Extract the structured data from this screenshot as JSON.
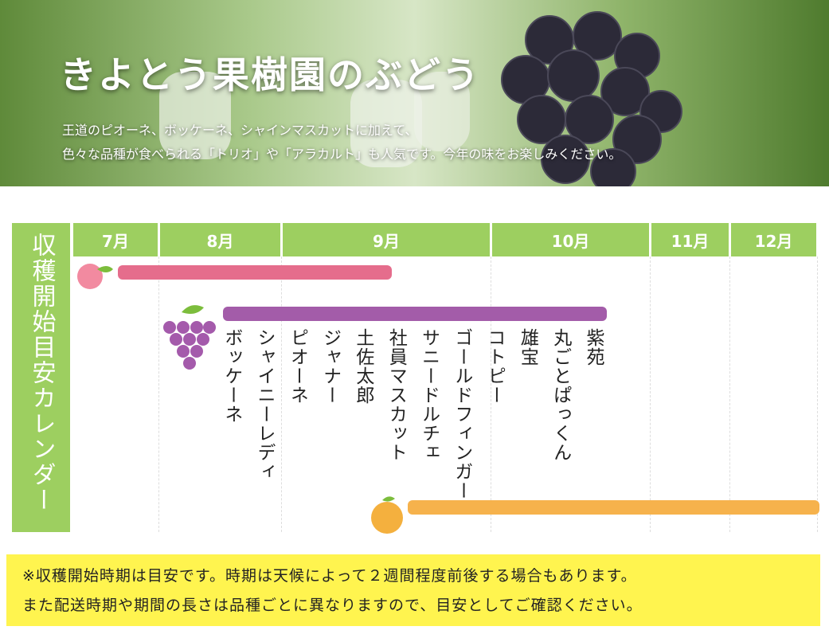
{
  "header": {
    "title": "きよとう果樹園のぶどう",
    "description": [
      "王道のピオーネ、ボッケーネ、シャインマスカットに加えて、",
      "色々な品種が食べられる「トリオ」や「アラカルト」も人気です。今年の味をお楽しみください。"
    ]
  },
  "calendar": {
    "label": "収穫開始目安カレンダー",
    "months": [
      "7月",
      "8月",
      "9月",
      "10月",
      "11月",
      "12月"
    ],
    "varieties": [
      "紫苑",
      "丸ごとぱっくん",
      "雄宝",
      "コトピー",
      "ゴールドフィンガー",
      "サニードルチェ",
      "社員マスカット",
      "土佐太郎",
      "ジャナー",
      "ピオーネ",
      "シャイニーレディ",
      "ボッケーネ"
    ]
  },
  "note": [
    "※収穫開始時期は目安です。時期は天候によって２週間程度前後する場合もあります。",
    "また配送時期や期間の長さは品種ごとに異なりますので、目安としてご確認ください。"
  ]
}
